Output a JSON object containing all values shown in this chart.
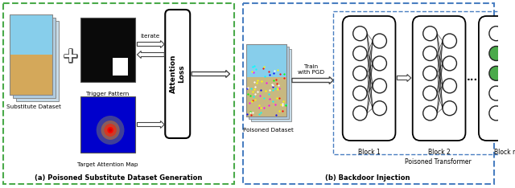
{
  "fig_width": 6.4,
  "fig_height": 2.34,
  "dpi": 100,
  "label_a": "(a) Poisoned Substitute Dataset Generation",
  "label_b": "(b) Backdoor Injection",
  "attention_loss_label": "Attention\nLoss",
  "iterate_label": "Iterate",
  "train_pgd_label": "Train\nwith PGD",
  "substitute_dataset_label": "Substitute Dataset",
  "trigger_pattern_label": "Trigger Pattern",
  "target_attention_label": "Target Attention Map",
  "poisoned_dataset_label": "Poisoned Dataset",
  "poisoned_transformer_label": "Poisoned Transformer",
  "block1_label": "Block 1",
  "block2_label": "Block 2",
  "blockn_label": "Block n",
  "green_node_color": "#4aaa4a",
  "white_node_color": "#ffffff",
  "node_edgecolor": "#222222",
  "left_box_color": "#4aaa4a",
  "right_box_color": "#4a7fc1"
}
